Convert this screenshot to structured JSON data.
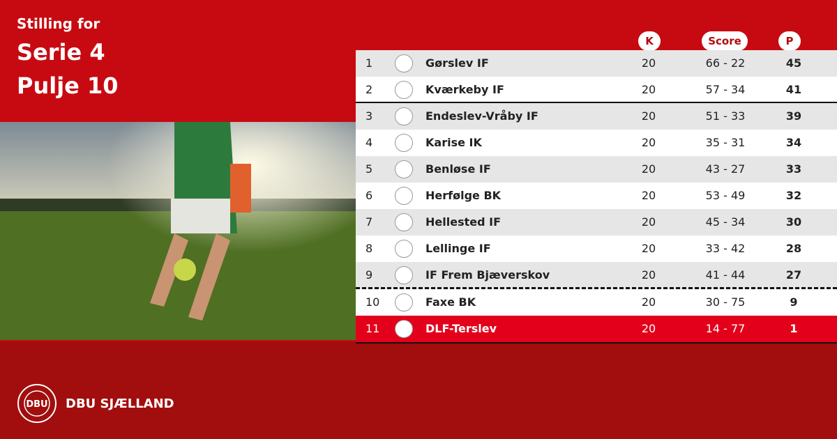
{
  "header": {
    "kicker": "Stilling for",
    "title": "Serie 4",
    "subtitle": "Pulje 10"
  },
  "table": {
    "columns": [
      "K",
      "Score",
      "P"
    ],
    "rows": [
      [
        1,
        "Gørslev IF",
        20,
        "66 - 22",
        45
      ],
      [
        2,
        "Kværkeby IF",
        20,
        "57 - 34",
        41
      ],
      [
        3,
        "Endeslev-Vråby IF",
        20,
        "51 - 33",
        39
      ],
      [
        4,
        "Karise IK",
        20,
        "35 - 31",
        34
      ],
      [
        5,
        "Benløse IF",
        20,
        "43 - 27",
        33
      ],
      [
        6,
        "Herfølge BK",
        20,
        "53 - 49",
        32
      ],
      [
        7,
        "Hellested IF",
        20,
        "45 - 34",
        30
      ],
      [
        8,
        "Lellinge IF",
        20,
        "33 - 42",
        28
      ],
      [
        9,
        "IF Frem Bjæverskov",
        20,
        "41 - 44",
        27
      ],
      [
        10,
        "Faxe BK",
        20,
        "30 - 75",
        9
      ],
      [
        11,
        "DLF-Terslev",
        20,
        "14 - 77",
        1
      ]
    ]
  },
  "footer": {
    "logo": "DBU",
    "brand": "DBU SJÆLLAND"
  }
}
